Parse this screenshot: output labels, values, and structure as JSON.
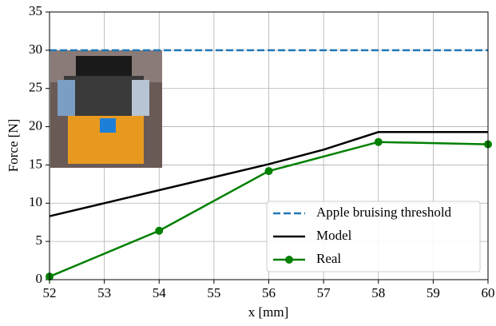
{
  "chart_data": {
    "type": "line",
    "xlabel": "x [mm]",
    "ylabel": "Force [N]",
    "xlim": [
      52,
      60
    ],
    "ylim": [
      0,
      35
    ],
    "xticks": [
      52,
      53,
      54,
      55,
      56,
      57,
      58,
      59,
      60
    ],
    "yticks": [
      0,
      5,
      10,
      15,
      20,
      25,
      30,
      35
    ],
    "grid": true,
    "legend": "lower right",
    "series": [
      {
        "name": "Apple bruising threshold",
        "color": "#1f77b4",
        "linestyle": "dashed",
        "x": [
          52,
          60
        ],
        "values": [
          30,
          30
        ]
      },
      {
        "name": "Model",
        "color": "#000000",
        "linestyle": "solid",
        "x": [
          52,
          53,
          54,
          55,
          56,
          57,
          58,
          59,
          60
        ],
        "values": [
          8.3,
          10.0,
          11.7,
          13.4,
          15.1,
          17.0,
          19.3,
          19.3,
          19.3
        ]
      },
      {
        "name": "Real",
        "color": "#008000",
        "linestyle": "solid",
        "marker": "o",
        "x": [
          52,
          54,
          56,
          58,
          60
        ],
        "values": [
          0.4,
          6.4,
          14.2,
          18.0,
          17.7
        ]
      }
    ]
  }
}
